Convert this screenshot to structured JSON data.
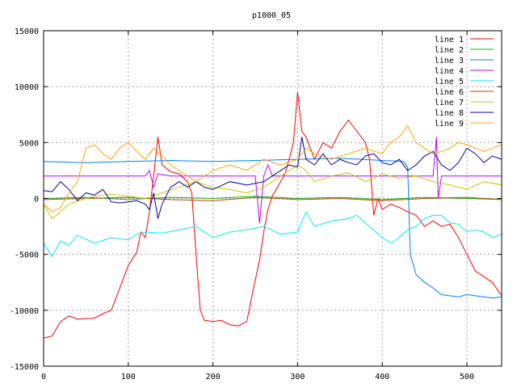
{
  "chart_data": {
    "type": "line",
    "title": "p1000_05",
    "xlabel": "",
    "ylabel": "",
    "xlim": [
      0,
      541
    ],
    "ylim": [
      -15000,
      15000
    ],
    "x_ticks": [
      0,
      100,
      200,
      300,
      400,
      500
    ],
    "y_ticks": [
      -15000,
      -10000,
      -5000,
      0,
      5000,
      10000,
      15000
    ],
    "grid": true,
    "legend_position": "top-right",
    "series": [
      {
        "name": "line 1",
        "color": "#ff0000",
        "points": [
          [
            0,
            -12500
          ],
          [
            10,
            -12300
          ],
          [
            20,
            -11000
          ],
          [
            30,
            -10500
          ],
          [
            40,
            -10800
          ],
          [
            60,
            -10700
          ],
          [
            70,
            -10300
          ],
          [
            80,
            -10000
          ],
          [
            90,
            -8000
          ],
          [
            100,
            -6000
          ],
          [
            110,
            -4800
          ],
          [
            115,
            -3000
          ],
          [
            120,
            -3500
          ],
          [
            125,
            -1200
          ],
          [
            130,
            2000
          ],
          [
            135,
            5500
          ],
          [
            140,
            3000
          ],
          [
            150,
            2400
          ],
          [
            160,
            2200
          ],
          [
            170,
            1500
          ],
          [
            175,
            500
          ],
          [
            180,
            -5000
          ],
          [
            185,
            -10000
          ],
          [
            190,
            -10900
          ],
          [
            200,
            -11000
          ],
          [
            210,
            -10900
          ],
          [
            220,
            -11300
          ],
          [
            230,
            -11400
          ],
          [
            240,
            -11000
          ],
          [
            248,
            -8000
          ],
          [
            255,
            -5500
          ],
          [
            260,
            -3000
          ],
          [
            265,
            -1000
          ],
          [
            270,
            200
          ],
          [
            280,
            1500
          ],
          [
            285,
            2200
          ],
          [
            290,
            3500
          ],
          [
            295,
            5000
          ],
          [
            300,
            9500
          ],
          [
            305,
            6000
          ],
          [
            310,
            5500
          ],
          [
            320,
            3500
          ],
          [
            330,
            5000
          ],
          [
            340,
            4500
          ],
          [
            350,
            6000
          ],
          [
            360,
            7000
          ],
          [
            370,
            6000
          ],
          [
            380,
            5000
          ],
          [
            385,
            3500
          ],
          [
            390,
            -1500
          ],
          [
            395,
            0
          ],
          [
            400,
            -1000
          ],
          [
            410,
            -500
          ],
          [
            420,
            -800
          ],
          [
            430,
            -1200
          ],
          [
            440,
            -1500
          ],
          [
            450,
            -2500
          ],
          [
            460,
            -2000
          ],
          [
            470,
            -2500
          ],
          [
            480,
            -2300
          ],
          [
            490,
            -3500
          ],
          [
            500,
            -5000
          ],
          [
            510,
            -6500
          ],
          [
            520,
            -7000
          ],
          [
            530,
            -7500
          ],
          [
            541,
            -8700
          ]
        ]
      },
      {
        "name": "line 2",
        "color": "#00c000",
        "points": [
          [
            0,
            0
          ],
          [
            50,
            100
          ],
          [
            100,
            -100
          ],
          [
            150,
            100
          ],
          [
            200,
            0
          ],
          [
            250,
            200
          ],
          [
            300,
            0
          ],
          [
            350,
            100
          ],
          [
            400,
            -100
          ],
          [
            450,
            100
          ],
          [
            500,
            0
          ],
          [
            541,
            -100
          ]
        ]
      },
      {
        "name": "line 3",
        "color": "#0080ff",
        "points": [
          [
            0,
            3300
          ],
          [
            50,
            3200
          ],
          [
            100,
            3300
          ],
          [
            150,
            3400
          ],
          [
            200,
            3300
          ],
          [
            250,
            3400
          ],
          [
            300,
            3500
          ],
          [
            350,
            3600
          ],
          [
            400,
            3400
          ],
          [
            425,
            3300
          ],
          [
            430,
            2800
          ],
          [
            433,
            -5000
          ],
          [
            440,
            -6800
          ],
          [
            450,
            -7500
          ],
          [
            460,
            -8000
          ],
          [
            470,
            -8600
          ],
          [
            480,
            -8700
          ],
          [
            490,
            -8800
          ],
          [
            500,
            -8600
          ],
          [
            510,
            -8700
          ],
          [
            520,
            -8800
          ],
          [
            530,
            -8900
          ],
          [
            541,
            -8800
          ]
        ]
      },
      {
        "name": "line 4",
        "color": "#c000ff",
        "points": [
          [
            0,
            2000
          ],
          [
            120,
            2000
          ],
          [
            125,
            2500
          ],
          [
            130,
            1000
          ],
          [
            135,
            2200
          ],
          [
            150,
            2000
          ],
          [
            250,
            2000
          ],
          [
            255,
            -2200
          ],
          [
            260,
            2000
          ],
          [
            265,
            3000
          ],
          [
            270,
            2000
          ],
          [
            300,
            2000
          ],
          [
            400,
            2000
          ],
          [
            460,
            2000
          ],
          [
            464,
            5500
          ],
          [
            466,
            0
          ],
          [
            470,
            2000
          ],
          [
            541,
            2000
          ]
        ]
      },
      {
        "name": "line 5",
        "color": "#00eeee",
        "points": [
          [
            0,
            -4000
          ],
          [
            10,
            -5200
          ],
          [
            20,
            -3800
          ],
          [
            30,
            -4200
          ],
          [
            40,
            -3300
          ],
          [
            60,
            -4000
          ],
          [
            80,
            -3500
          ],
          [
            100,
            -3700
          ],
          [
            110,
            -3200
          ],
          [
            120,
            -3000
          ],
          [
            140,
            -3100
          ],
          [
            160,
            -2800
          ],
          [
            180,
            -2500
          ],
          [
            200,
            -3500
          ],
          [
            220,
            -3000
          ],
          [
            240,
            -2800
          ],
          [
            260,
            -2500
          ],
          [
            280,
            -3200
          ],
          [
            300,
            -3000
          ],
          [
            310,
            -1200
          ],
          [
            320,
            -2500
          ],
          [
            340,
            -2000
          ],
          [
            360,
            -1800
          ],
          [
            370,
            -1500
          ],
          [
            380,
            -2200
          ],
          [
            400,
            -3500
          ],
          [
            410,
            -4000
          ],
          [
            420,
            -3500
          ],
          [
            430,
            -2800
          ],
          [
            440,
            -2500
          ],
          [
            450,
            -1800
          ],
          [
            460,
            -1500
          ],
          [
            470,
            -1500
          ],
          [
            480,
            -2200
          ],
          [
            490,
            -2300
          ],
          [
            500,
            -3000
          ],
          [
            510,
            -2800
          ],
          [
            520,
            -3000
          ],
          [
            530,
            -3500
          ],
          [
            541,
            -3200
          ]
        ]
      },
      {
        "name": "line 6",
        "color": "#c04000",
        "points": [
          [
            0,
            -100
          ],
          [
            50,
            0
          ],
          [
            100,
            100
          ],
          [
            150,
            -100
          ],
          [
            200,
            -200
          ],
          [
            250,
            100
          ],
          [
            300,
            -100
          ],
          [
            350,
            0
          ],
          [
            400,
            -200
          ],
          [
            450,
            0
          ],
          [
            500,
            100
          ],
          [
            541,
            -100
          ]
        ]
      },
      {
        "name": "line 7",
        "color": "#c8c800",
        "points": [
          [
            0,
            -500
          ],
          [
            10,
            -1800
          ],
          [
            20,
            -1200
          ],
          [
            30,
            -500
          ],
          [
            50,
            0
          ],
          [
            60,
            200
          ],
          [
            80,
            400
          ],
          [
            100,
            200
          ],
          [
            120,
            0
          ],
          [
            140,
            500
          ],
          [
            160,
            1000
          ],
          [
            180,
            1500
          ],
          [
            200,
            1000
          ],
          [
            220,
            800
          ],
          [
            240,
            500
          ],
          [
            260,
            1000
          ],
          [
            280,
            2000
          ],
          [
            300,
            3000
          ],
          [
            310,
            2500
          ],
          [
            320,
            1500
          ],
          [
            340,
            2000
          ],
          [
            360,
            2300
          ],
          [
            380,
            1500
          ],
          [
            390,
            1800
          ],
          [
            400,
            2200
          ],
          [
            420,
            1800
          ],
          [
            440,
            2000
          ],
          [
            460,
            1500
          ],
          [
            480,
            1200
          ],
          [
            500,
            800
          ],
          [
            520,
            1500
          ],
          [
            541,
            1200
          ]
        ]
      },
      {
        "name": "line 8",
        "color": "#0000a0",
        "points": [
          [
            0,
            700
          ],
          [
            10,
            600
          ],
          [
            20,
            1500
          ],
          [
            30,
            800
          ],
          [
            40,
            -200
          ],
          [
            50,
            500
          ],
          [
            60,
            300
          ],
          [
            70,
            800
          ],
          [
            80,
            -300
          ],
          [
            90,
            -400
          ],
          [
            100,
            -300
          ],
          [
            110,
            -200
          ],
          [
            120,
            -500
          ],
          [
            125,
            -1000
          ],
          [
            130,
            500
          ],
          [
            135,
            -1800
          ],
          [
            140,
            -500
          ],
          [
            150,
            1000
          ],
          [
            160,
            1500
          ],
          [
            170,
            1000
          ],
          [
            180,
            1500
          ],
          [
            190,
            1000
          ],
          [
            200,
            800
          ],
          [
            220,
            1500
          ],
          [
            240,
            1200
          ],
          [
            260,
            1500
          ],
          [
            280,
            2500
          ],
          [
            290,
            3000
          ],
          [
            300,
            2800
          ],
          [
            305,
            5500
          ],
          [
            310,
            3500
          ],
          [
            320,
            3000
          ],
          [
            330,
            4000
          ],
          [
            340,
            3000
          ],
          [
            350,
            3500
          ],
          [
            360,
            3200
          ],
          [
            370,
            3000
          ],
          [
            380,
            3800
          ],
          [
            390,
            4000
          ],
          [
            400,
            3200
          ],
          [
            410,
            3000
          ],
          [
            420,
            3500
          ],
          [
            430,
            2500
          ],
          [
            440,
            3000
          ],
          [
            450,
            3800
          ],
          [
            460,
            4200
          ],
          [
            470,
            3000
          ],
          [
            480,
            2500
          ],
          [
            490,
            3200
          ],
          [
            500,
            4500
          ],
          [
            510,
            4000
          ],
          [
            520,
            3200
          ],
          [
            530,
            3800
          ],
          [
            541,
            3500
          ]
        ]
      },
      {
        "name": "line 9",
        "color": "#ffa500",
        "points": [
          [
            0,
            -500
          ],
          [
            10,
            -1200
          ],
          [
            20,
            -800
          ],
          [
            30,
            500
          ],
          [
            40,
            1500
          ],
          [
            50,
            4500
          ],
          [
            60,
            4800
          ],
          [
            70,
            4000
          ],
          [
            80,
            3500
          ],
          [
            90,
            4500
          ],
          [
            100,
            5000
          ],
          [
            110,
            4200
          ],
          [
            120,
            3500
          ],
          [
            130,
            4500
          ],
          [
            140,
            3800
          ],
          [
            150,
            3000
          ],
          [
            160,
            2500
          ],
          [
            170,
            2000
          ],
          [
            180,
            1500
          ],
          [
            200,
            2500
          ],
          [
            220,
            3000
          ],
          [
            240,
            2500
          ],
          [
            260,
            3500
          ],
          [
            280,
            3000
          ],
          [
            300,
            3500
          ],
          [
            310,
            4500
          ],
          [
            320,
            4000
          ],
          [
            340,
            3500
          ],
          [
            360,
            4000
          ],
          [
            380,
            4500
          ],
          [
            400,
            4000
          ],
          [
            410,
            5000
          ],
          [
            420,
            5500
          ],
          [
            430,
            6500
          ],
          [
            440,
            5000
          ],
          [
            450,
            4500
          ],
          [
            460,
            4000
          ],
          [
            470,
            4200
          ],
          [
            480,
            4500
          ],
          [
            490,
            5000
          ],
          [
            500,
            4800
          ],
          [
            510,
            4500
          ],
          [
            520,
            4200
          ],
          [
            530,
            4500
          ],
          [
            541,
            4800
          ]
        ]
      }
    ]
  }
}
